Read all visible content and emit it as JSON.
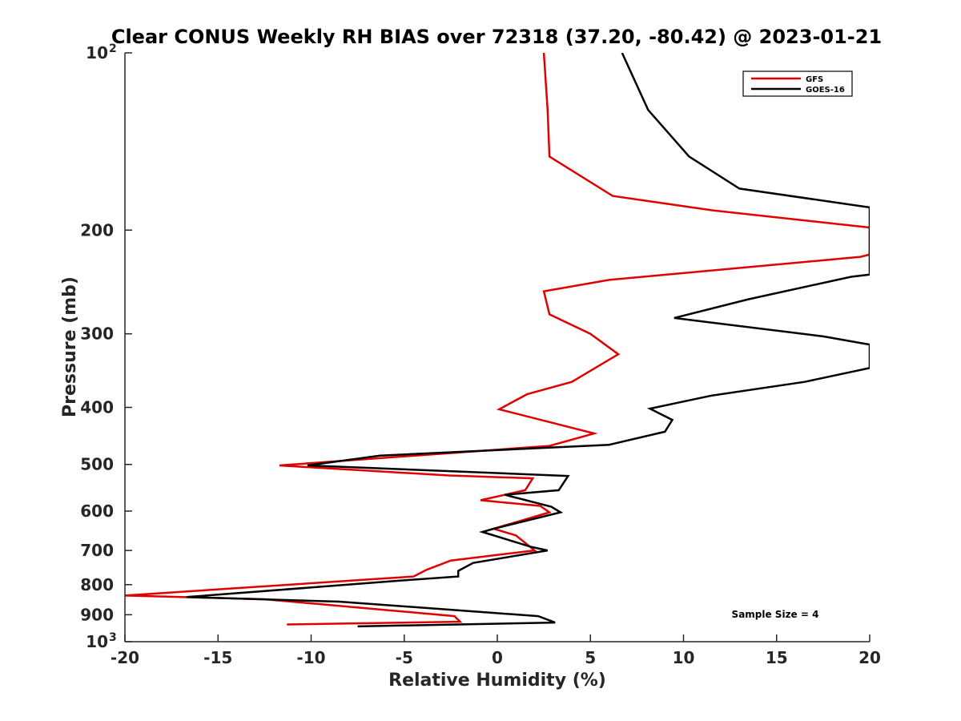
{
  "chart_data": {
    "type": "line",
    "title": "Clear CONUS Weekly RH BIAS over 72318 (37.20, -80.42) @ 2023-01-21",
    "xlabel": "Relative Humidity (%)",
    "ylabel": "Pressure (mb)",
    "xlim": [
      -20,
      20
    ],
    "ylim": [
      100,
      1000
    ],
    "y_scale": "log",
    "y_reversed": true,
    "grid": false,
    "legend_position": "top-right",
    "x_ticks": [
      "-20",
      "-15",
      "-10",
      "-5",
      "0",
      "5",
      "10",
      "15",
      "20"
    ],
    "y_ticks": [
      {
        "value": 100,
        "label": "10",
        "sup": "2"
      },
      {
        "value": 200,
        "label": "200",
        "sup": ""
      },
      {
        "value": 300,
        "label": "300",
        "sup": ""
      },
      {
        "value": 400,
        "label": "400",
        "sup": ""
      },
      {
        "value": 500,
        "label": "500",
        "sup": ""
      },
      {
        "value": 600,
        "label": "600",
        "sup": ""
      },
      {
        "value": 700,
        "label": "700",
        "sup": ""
      },
      {
        "value": 800,
        "label": "800",
        "sup": ""
      },
      {
        "value": 900,
        "label": "900",
        "sup": ""
      },
      {
        "value": 1000,
        "label": "10",
        "sup": "3"
      }
    ],
    "annotation": "Sample Size = 4",
    "series": [
      {
        "name": "GFS",
        "color": "#e00000",
        "points": [
          [
            2.5,
            100
          ],
          [
            2.7,
            125
          ],
          [
            2.8,
            150
          ],
          [
            6.2,
            175
          ],
          [
            11.5,
            185
          ],
          [
            20,
            198
          ],
          [
            20,
            220
          ],
          [
            19.5,
            222
          ],
          [
            6,
            243
          ],
          [
            2.5,
            254
          ],
          [
            2.8,
            278
          ],
          [
            5,
            300
          ],
          [
            6.5,
            325
          ],
          [
            4,
            362
          ],
          [
            1.6,
            380
          ],
          [
            0.1,
            403
          ],
          [
            5.2,
            443
          ],
          [
            2.8,
            465
          ],
          [
            -11.7,
            502
          ],
          [
            -2.6,
            522
          ],
          [
            1.9,
            528
          ],
          [
            1.5,
            553
          ],
          [
            -0.9,
            575
          ],
          [
            2.3,
            588
          ],
          [
            2.8,
            603
          ],
          [
            -0.2,
            643
          ],
          [
            1.0,
            660
          ],
          [
            2.0,
            700
          ],
          [
            -2.5,
            728
          ],
          [
            -3.8,
            755
          ],
          [
            -4.5,
            775
          ],
          [
            -20,
            835
          ],
          [
            -12.5,
            847
          ],
          [
            -2.3,
            905
          ],
          [
            -2.0,
            925
          ],
          [
            -11.3,
            935
          ]
        ]
      },
      {
        "name": "GOES-16",
        "color": "#000000",
        "points": [
          [
            6.7,
            100
          ],
          [
            8.1,
            125
          ],
          [
            10.3,
            150
          ],
          [
            13,
            170
          ],
          [
            20,
            183
          ],
          [
            20,
            238
          ],
          [
            19,
            240
          ],
          [
            13.5,
            262
          ],
          [
            9.5,
            282
          ],
          [
            17.5,
            303
          ],
          [
            20,
            313
          ],
          [
            20,
            343
          ],
          [
            16.5,
            362
          ],
          [
            11.5,
            382
          ],
          [
            8.2,
            402
          ],
          [
            9.4,
            420
          ],
          [
            9.0,
            440
          ],
          [
            6.0,
            463
          ],
          [
            -6.3,
            483
          ],
          [
            -10.2,
            502
          ],
          [
            3.8,
            523
          ],
          [
            3.3,
            553
          ],
          [
            0.4,
            563
          ],
          [
            2.9,
            590
          ],
          [
            3.4,
            603
          ],
          [
            -0.2,
            643
          ],
          [
            -0.8,
            651
          ],
          [
            1.8,
            690
          ],
          [
            2.7,
            700
          ],
          [
            -1.3,
            735
          ],
          [
            -2.1,
            758
          ],
          [
            -2.1,
            775
          ],
          [
            -5.3,
            788
          ],
          [
            -16.7,
            840
          ],
          [
            -8.5,
            855
          ],
          [
            2.2,
            905
          ],
          [
            3.1,
            928
          ],
          [
            -7.5,
            942
          ]
        ]
      }
    ]
  }
}
